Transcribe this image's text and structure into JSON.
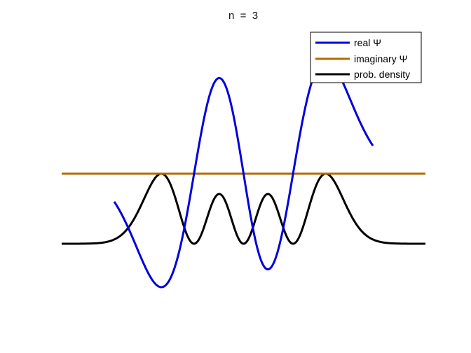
{
  "chart_data": {
    "type": "line",
    "title": "n  =  3",
    "xlabel": "",
    "ylabel": "",
    "axes_visible": false,
    "grid": false,
    "legend_position": "top-right",
    "xlim": [
      -4.5,
      4.5
    ],
    "ylim": [
      -0.95,
      0.95
    ],
    "density_offset": -0.5,
    "density_scale": 0.5,
    "n": 3,
    "series": [
      {
        "name": "real Ψ",
        "color": "#0000dd",
        "role": "real",
        "x_range": [
          -3.2,
          3.2
        ]
      },
      {
        "name": "imaginary Ψ",
        "color": "#b36b00",
        "role": "imag",
        "x_range": [
          -4.5,
          4.5
        ]
      },
      {
        "name": "prob. density",
        "color": "#000000",
        "role": "density",
        "x_range": [
          -4.5,
          4.5
        ]
      }
    ]
  }
}
